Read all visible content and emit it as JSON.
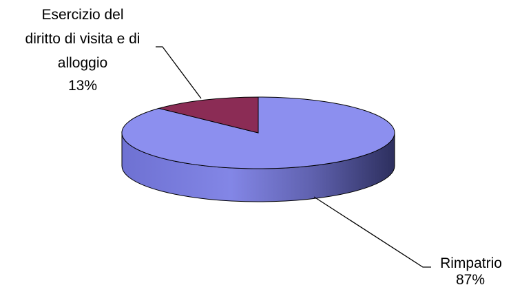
{
  "chart_data": {
    "type": "pie",
    "style": "3d",
    "slices": [
      {
        "label_lines": [
          "Esercizio del",
          "diritto di visita e di",
          "alloggio"
        ],
        "percent_label": "13%",
        "value": 13,
        "color": "#8B2C55"
      },
      {
        "label_lines": [
          "Rimpatrio"
        ],
        "percent_label": "87%",
        "value": 87,
        "color": "#8C8FEF"
      }
    ],
    "legend": "none",
    "data_labels": "outside with leader lines"
  }
}
